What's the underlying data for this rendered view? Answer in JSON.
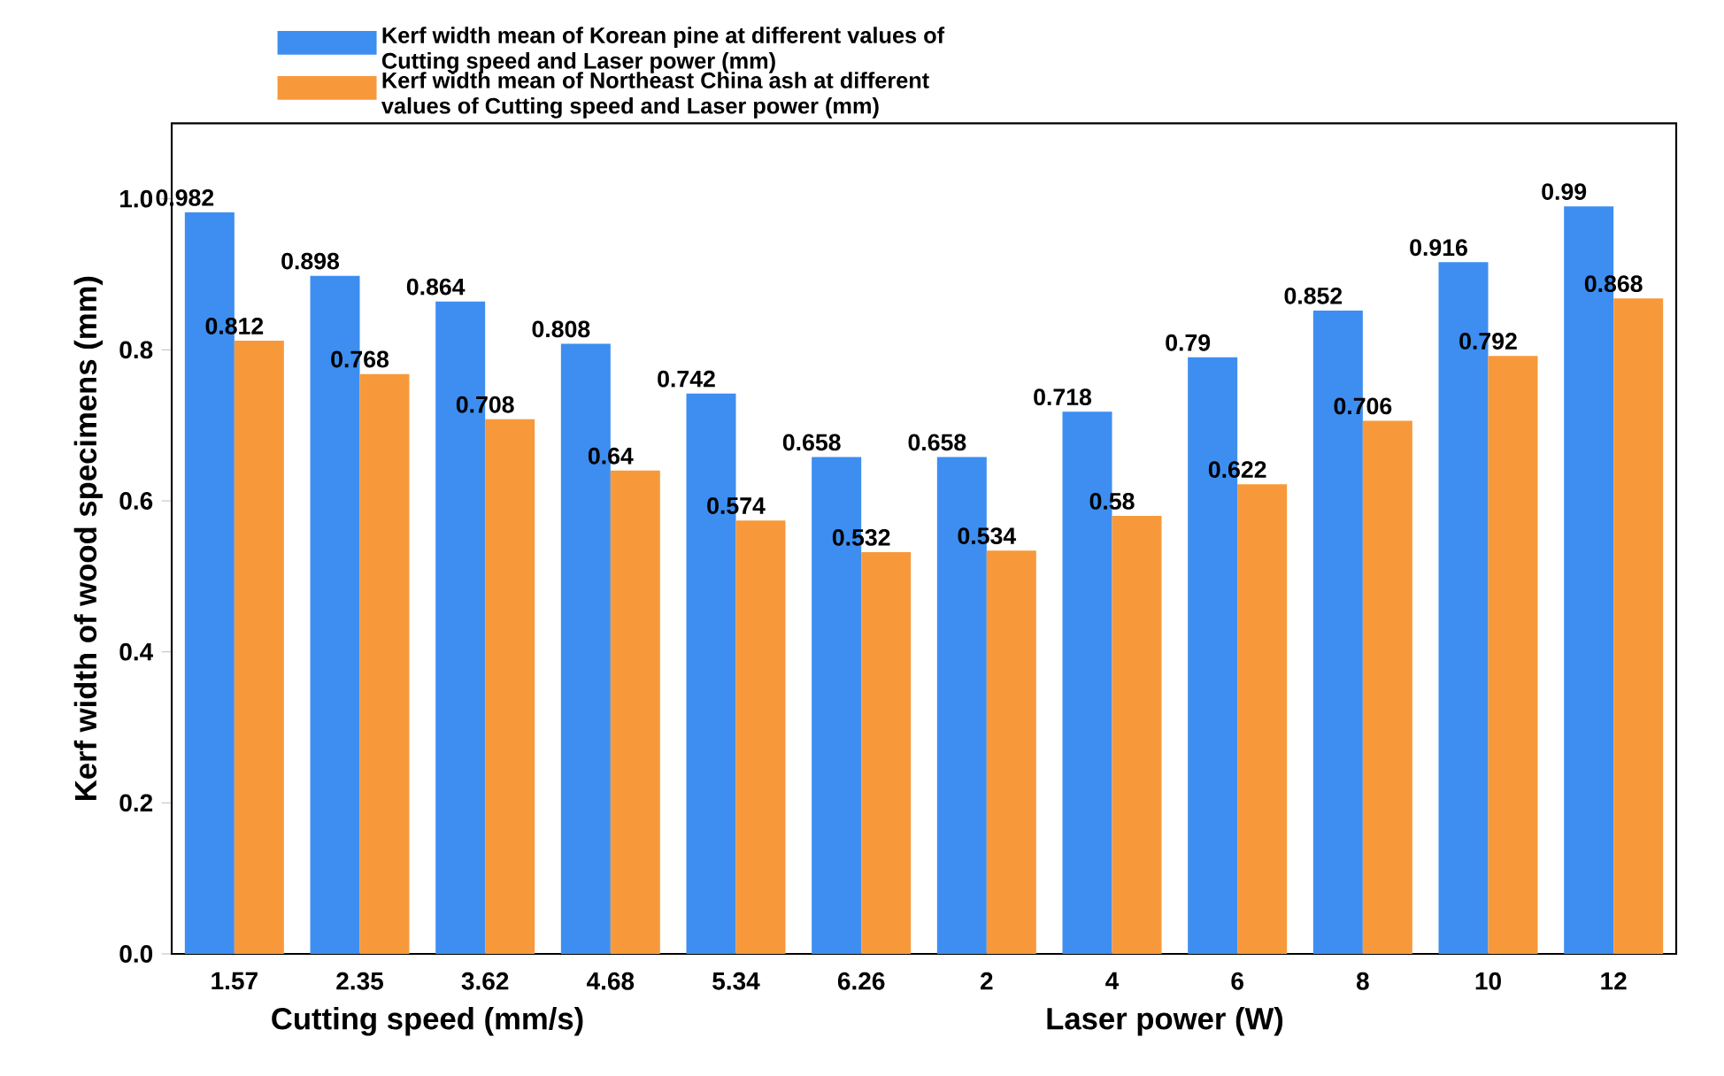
{
  "chart_data": {
    "type": "bar",
    "xlabel": "Cutting speed (mm/s)",
    "ylabel": "Kerf width of wood specimens (mm)",
    "annotations": [
      "Laser power (W)"
    ],
    "categories": [
      "1.57",
      "2.35",
      "3.62",
      "4.68",
      "5.34",
      "6.26",
      "2",
      "4",
      "6",
      "8",
      "10",
      "12"
    ],
    "series": [
      {
        "name": "Kerf width mean of Korean pine at different values of Cutting speed and Laser power (mm)",
        "color": "#3d8ef0",
        "values": [
          0.982,
          0.898,
          0.864,
          0.808,
          0.742,
          0.658,
          0.658,
          0.718,
          0.79,
          0.852,
          0.916,
          0.99
        ]
      },
      {
        "name": "Kerf width mean of Northeast China ash at different values of Cutting speed and Laser power (mm)",
        "color": "#f7993b",
        "values": [
          0.812,
          0.768,
          0.708,
          0.64,
          0.574,
          0.532,
          0.534,
          0.58,
          0.622,
          0.706,
          0.792,
          0.868
        ]
      }
    ],
    "ylim": [
      0,
      1.1
    ],
    "yticks": [
      {
        "value": 0,
        "label": "0.0"
      },
      {
        "value": 0.2,
        "label": "0.2"
      },
      {
        "value": 0.4,
        "label": "0.4"
      },
      {
        "value": 0.6,
        "label": "0.6"
      },
      {
        "value": 0.8,
        "label": "0.8"
      },
      {
        "value": 1.0,
        "label": "1.0"
      }
    ],
    "data_labels": true,
    "legend": "top",
    "grid": false
  }
}
